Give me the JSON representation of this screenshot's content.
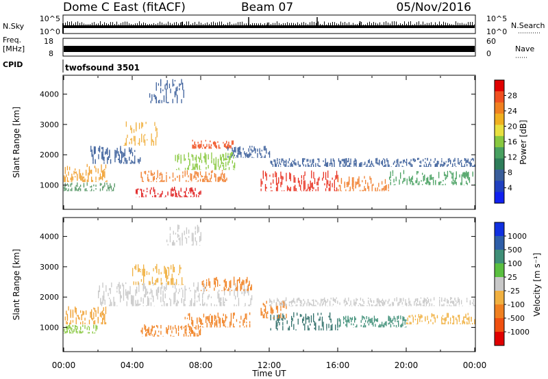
{
  "header": {
    "station": "Dome C East (fitACF)",
    "beam": "Beam 07",
    "date": "05/Nov/2016"
  },
  "status_panels": {
    "nsky_label": "N.Sky",
    "nsky_ticks": [
      "10^5",
      "10^0"
    ],
    "nsearch_label": "N.Search",
    "nsearch_ticks": [
      "10^5",
      "10^0"
    ],
    "freq_label_lines": [
      "Freq.",
      "[MHz]"
    ],
    "freq_ticks": [
      "18",
      "8"
    ],
    "nave_label": "Nave",
    "nave_ticks": [
      "60",
      "0"
    ],
    "cpid_label": "CPID",
    "cpid_value": "twofsound 3501"
  },
  "chart_data": [
    {
      "type": "heatmap",
      "name": "Power",
      "ylabel": "Slant Range [km]",
      "colorbar_label": "Power [dB]",
      "yticks": [
        "1000",
        "2000",
        "3000",
        "4000"
      ],
      "ylim": [
        200,
        4600
      ],
      "xlim_hours": [
        0,
        24
      ],
      "colorbar": {
        "tick_labels": [
          "28",
          "24",
          "20",
          "16",
          "12",
          "8",
          "4"
        ],
        "colors": [
          "#e00000",
          "#f05020",
          "#f08020",
          "#f0b020",
          "#e8e040",
          "#88c840",
          "#48a060",
          "#2e7d5a",
          "#3a5e9a",
          "#2040c0",
          "#1020f0"
        ]
      },
      "regions": [
        {
          "t": [
            0.0,
            2.5
          ],
          "r": [
            1100,
            1700
          ],
          "color": "#f0a030"
        },
        {
          "t": [
            0.0,
            3.0
          ],
          "r": [
            800,
            1100
          ],
          "color": "#5a9a6a"
        },
        {
          "t": [
            1.5,
            4.5
          ],
          "r": [
            1700,
            2300
          ],
          "color": "#3a5e9a"
        },
        {
          "t": [
            3.5,
            5.5
          ],
          "r": [
            2300,
            3100
          ],
          "color": "#f0b040"
        },
        {
          "t": [
            4.2,
            8.0
          ],
          "r": [
            600,
            950
          ],
          "color": "#e02020"
        },
        {
          "t": [
            4.5,
            9.5
          ],
          "r": [
            1100,
            1500
          ],
          "color": "#f08030"
        },
        {
          "t": [
            6.5,
            10.0
          ],
          "r": [
            1500,
            2100
          ],
          "color": "#88c840"
        },
        {
          "t": [
            7.5,
            10.0
          ],
          "r": [
            2200,
            2500
          ],
          "color": "#f05020"
        },
        {
          "t": [
            9.5,
            12.0
          ],
          "r": [
            1900,
            2300
          ],
          "color": "#3a5e9a"
        },
        {
          "t": [
            11.5,
            16.0
          ],
          "r": [
            800,
            1500
          ],
          "color": "#e83020"
        },
        {
          "t": [
            16.0,
            19.0
          ],
          "r": [
            800,
            1300
          ],
          "color": "#f08030"
        },
        {
          "t": [
            19.0,
            24.0
          ],
          "r": [
            1000,
            1500
          ],
          "color": "#48a060"
        },
        {
          "t": [
            12.0,
            24.0
          ],
          "r": [
            1600,
            1900
          ],
          "color": "#3a5e9a"
        },
        {
          "t": [
            5.0,
            7.0
          ],
          "r": [
            3700,
            4500
          ],
          "color": "#3a5e9a"
        }
      ]
    },
    {
      "type": "heatmap",
      "name": "Velocity",
      "ylabel": "Slant Range [km]",
      "colorbar_label": "Velocity [m s⁻¹]",
      "yticks": [
        "1000",
        "2000",
        "3000",
        "4000"
      ],
      "ylim": [
        200,
        4600
      ],
      "xlim_hours": [
        0,
        24
      ],
      "colorbar": {
        "tick_labels": [
          "1000",
          "500",
          "100",
          "25",
          "-25",
          "-100",
          "-500",
          "-1000"
        ],
        "colors": [
          "#1030e0",
          "#2e5ea8",
          "#3f8f78",
          "#5abf40",
          "#c8c8c8",
          "#f0b040",
          "#f08020",
          "#f05010",
          "#e00000"
        ]
      },
      "regions": [
        {
          "t": [
            0.0,
            2.5
          ],
          "r": [
            1100,
            1700
          ],
          "color": "#f0a030"
        },
        {
          "t": [
            0.0,
            2.0
          ],
          "r": [
            800,
            1100
          ],
          "color": "#88c840"
        },
        {
          "t": [
            2.0,
            11.0
          ],
          "r": [
            1700,
            2500
          ],
          "color": "#c8c8c8"
        },
        {
          "t": [
            4.5,
            8.0
          ],
          "r": [
            700,
            1100
          ],
          "color": "#f08020"
        },
        {
          "t": [
            7.0,
            11.0
          ],
          "r": [
            1000,
            1500
          ],
          "color": "#f08020"
        },
        {
          "t": [
            4.0,
            7.0
          ],
          "r": [
            2400,
            3100
          ],
          "color": "#f0b040"
        },
        {
          "t": [
            8.0,
            11.0
          ],
          "r": [
            2200,
            2700
          ],
          "color": "#f08020"
        },
        {
          "t": [
            12.0,
            16.0
          ],
          "r": [
            900,
            1500
          ],
          "color": "#2e6e68"
        },
        {
          "t": [
            16.0,
            20.0
          ],
          "r": [
            1000,
            1400
          ],
          "color": "#3f8f78"
        },
        {
          "t": [
            20.0,
            24.0
          ],
          "r": [
            1100,
            1500
          ],
          "color": "#f0b040"
        },
        {
          "t": [
            11.5,
            13.0
          ],
          "r": [
            1300,
            1900
          ],
          "color": "#f08020"
        },
        {
          "t": [
            12.0,
            24.0
          ],
          "r": [
            1700,
            2000
          ],
          "color": "#c8c8c8"
        },
        {
          "t": [
            6.0,
            8.0
          ],
          "r": [
            3700,
            4400
          ],
          "color": "#c8c8c8"
        }
      ]
    }
  ],
  "x_axis": {
    "label": "Time UT",
    "ticks": [
      "00:00",
      "04:00",
      "08:00",
      "12:00",
      "16:00",
      "20:00",
      "00:00"
    ]
  }
}
